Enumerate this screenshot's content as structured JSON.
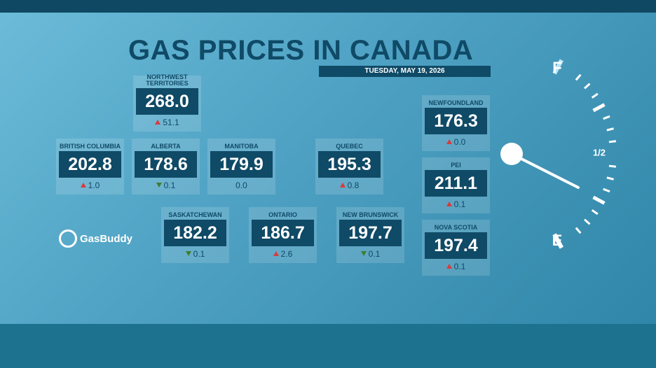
{
  "header": {
    "title": "GAS PRICES IN CANADA",
    "date": "TUESDAY, MAY 19, 2026"
  },
  "logo": "GasBuddy",
  "gauge": {
    "full": "F",
    "half": "1/2",
    "empty": "E"
  },
  "provinces": [
    {
      "name": "NORTHWEST TERRITORIES",
      "price": "268.0",
      "change": "51.1",
      "direction": "up"
    },
    {
      "name": "BRITISH COLUMBIA",
      "price": "202.8",
      "change": "1.0",
      "direction": "up"
    },
    {
      "name": "ALBERTA",
      "price": "178.6",
      "change": "0.1",
      "direction": "down"
    },
    {
      "name": "MANITOBA",
      "price": "179.9",
      "change": "0.0",
      "direction": "none"
    },
    {
      "name": "QUEBEC",
      "price": "195.3",
      "change": "0.8",
      "direction": "up"
    },
    {
      "name": "NEWFOUNDLAND",
      "price": "176.3",
      "change": "0.0",
      "direction": "up"
    },
    {
      "name": "PEI",
      "price": "211.1",
      "change": "0.1",
      "direction": "up"
    },
    {
      "name": "SASKATCHEWAN",
      "price": "182.2",
      "change": "0.1",
      "direction": "down"
    },
    {
      "name": "ONTARIO",
      "price": "186.7",
      "change": "2.6",
      "direction": "up"
    },
    {
      "name": "NEW BRUNSWICK",
      "price": "197.7",
      "change": "0.1",
      "direction": "down"
    },
    {
      "name": "NOVA SCOTIA",
      "price": "197.4",
      "change": "0.1",
      "direction": "up"
    }
  ]
}
